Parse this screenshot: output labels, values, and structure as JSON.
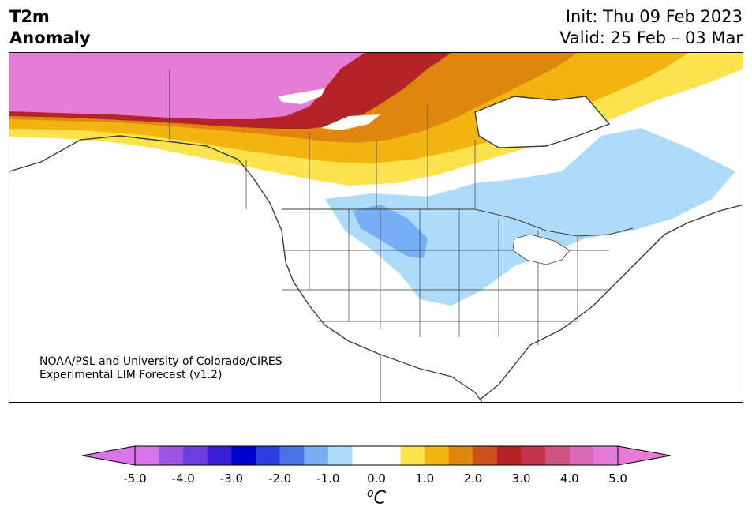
{
  "header": {
    "title_line1": "T2m",
    "title_line2": "Anomaly",
    "init": "Init: Thu 09 Feb 2023",
    "valid": "Valid: 25 Feb – 03 Mar"
  },
  "credit": {
    "line1": "NOAA/PSL and University of Colorado/CIRES",
    "line2": "Experimental LIM Forecast (v1.2)"
  },
  "colorbar": {
    "unit": "C",
    "unit_prefix": "o",
    "ticks": [
      "-5.0",
      "-4.0",
      "-3.0",
      "-2.0",
      "-1.0",
      "0.0",
      "1.0",
      "2.0",
      "3.0",
      "4.0",
      "5.0"
    ],
    "colors": [
      "#d873e8",
      "#9b55e0",
      "#6a3ddd",
      "#3a20d8",
      "#0000cd",
      "#2a3fdc",
      "#4a73ea",
      "#76aff3",
      "#aedbfa",
      "#ffffff",
      "#ffffff",
      "#fde24f",
      "#f1b410",
      "#e0860f",
      "#c9521a",
      "#b42326",
      "#c4344b",
      "#cf5282",
      "#db69b9",
      "#e77cd8"
    ],
    "extend_low_color": "#d873e8",
    "extend_high_color": "#e77cd8"
  },
  "colors": {
    "land_outline": "#3b3b3b",
    "pink_anomaly": "#e77cd8",
    "red_anomaly": "#b42326",
    "orange_anomaly": "#e0860f",
    "yellow_anomaly": "#fde24f",
    "light_blue_anomaly": "#aedbfa",
    "mid_blue_anomaly": "#76aff3"
  }
}
